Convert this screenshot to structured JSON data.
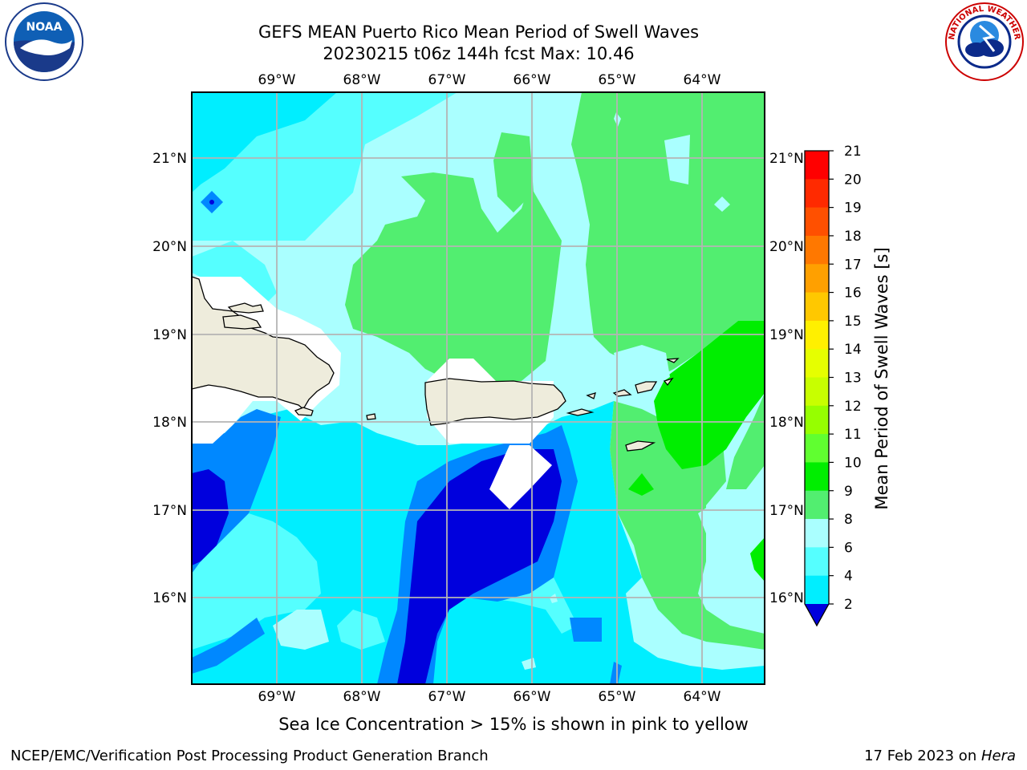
{
  "header": {
    "title_line1": "GEFS MEAN Puerto Rico Mean Period of Swell Waves",
    "title_line2": "20230215 t06z 144h fcst   Max: 10.46"
  },
  "logos": {
    "left": "NOAA",
    "right_text": "NATIONAL WEATHER SERVICE"
  },
  "map": {
    "lon_ticks": [
      "69°W",
      "68°W",
      "67°W",
      "66°W",
      "65°W",
      "64°W"
    ],
    "lat_ticks": [
      "21°N",
      "20°N",
      "19°N",
      "18°N",
      "17°N",
      "16°N"
    ],
    "land_color": "#eeecdc"
  },
  "colorbar": {
    "label": "Mean Period of Swell Waves [s]",
    "ticks": [
      "21",
      "20",
      "19",
      "18",
      "17",
      "16",
      "15",
      "14",
      "13",
      "12",
      "11",
      "10",
      "9",
      "8",
      "6",
      "4",
      "2"
    ],
    "colors": [
      "#ff0000",
      "#ff2a00",
      "#ff5000",
      "#ff7800",
      "#ffa000",
      "#ffc800",
      "#fff000",
      "#e6ff00",
      "#c8ff00",
      "#96ff00",
      "#60ff30",
      "#00ee00",
      "#52ee70",
      "#aaffff",
      "#55ffff",
      "#00eeff",
      "#0088ff",
      "#0000dd"
    ]
  },
  "caption": "Sea Ice Concentration > 15% is shown in pink to yellow",
  "footer": {
    "left": "NCEP/EMC/Verification Post Processing Product Generation Branch",
    "right_prefix": "17 Feb 2023 on ",
    "right_host": "Hera"
  }
}
